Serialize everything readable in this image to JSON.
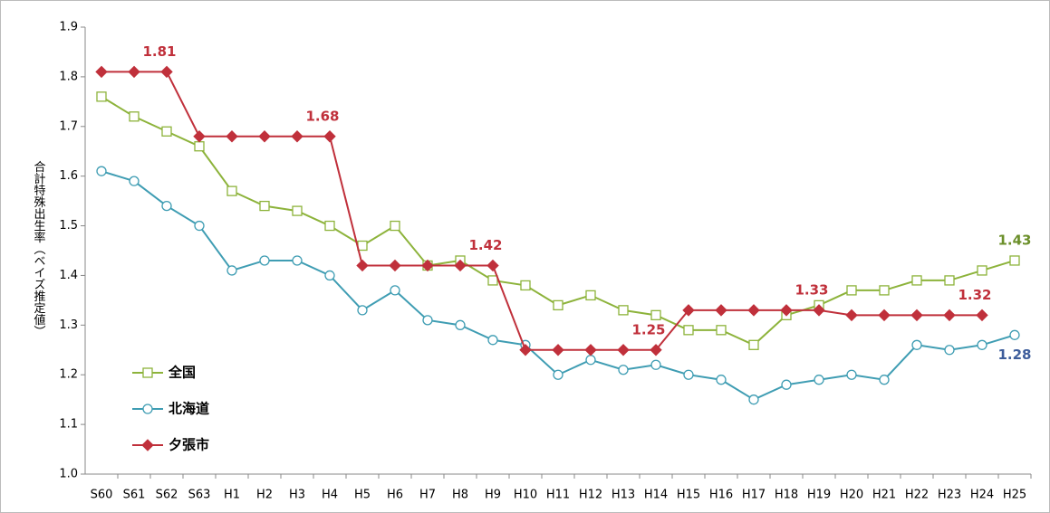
{
  "chart_data": {
    "type": "line",
    "y_label": "合計特殊出生率（ベイズ推定値）",
    "categories": [
      "S60",
      "S61",
      "S62",
      "S63",
      "H1",
      "H2",
      "H3",
      "H4",
      "H5",
      "H6",
      "H7",
      "H8",
      "H9",
      "H10",
      "H11",
      "H12",
      "H13",
      "H14",
      "H15",
      "H16",
      "H17",
      "H18",
      "H19",
      "H20",
      "H21",
      "H22",
      "H23",
      "H24",
      "H25"
    ],
    "ylim": [
      1.0,
      1.9
    ],
    "yticks": [
      {
        "value": 1,
        "label": "1.0"
      },
      1.1,
      1.2,
      1.3,
      1.4,
      1.5,
      1.6,
      1.7,
      1.8,
      1.9
    ],
    "grid": false,
    "legend": "lower left",
    "series": [
      {
        "name": "全国",
        "color": "#8db33b",
        "marker": "square",
        "label_color": "#6b8f2a",
        "values": [
          1.76,
          1.72,
          1.69,
          1.66,
          1.57,
          1.54,
          1.53,
          1.5,
          1.46,
          1.5,
          1.42,
          1.43,
          1.39,
          1.38,
          1.34,
          1.36,
          1.33,
          1.32,
          1.29,
          1.29,
          1.26,
          1.32,
          1.34,
          1.37,
          1.37,
          1.39,
          1.39,
          1.41,
          1.43
        ],
        "value_labels": [
          null,
          null,
          null,
          null,
          null,
          null,
          null,
          null,
          null,
          null,
          null,
          null,
          null,
          null,
          null,
          null,
          null,
          null,
          null,
          null,
          null,
          null,
          null,
          null,
          null,
          null,
          null,
          null,
          "1.43"
        ]
      },
      {
        "name": "北海道",
        "color": "#3f9db3",
        "marker": "circle",
        "label_color": "#3d5d9b",
        "values": [
          1.61,
          1.59,
          1.54,
          1.5,
          1.41,
          1.43,
          1.43,
          1.4,
          1.33,
          1.37,
          1.31,
          1.3,
          1.27,
          1.26,
          1.2,
          1.23,
          1.21,
          1.22,
          1.2,
          1.19,
          1.15,
          1.18,
          1.19,
          1.2,
          1.19,
          1.26,
          1.25,
          1.26,
          1.28
        ],
        "value_labels": [
          null,
          null,
          null,
          null,
          null,
          null,
          null,
          null,
          null,
          null,
          null,
          null,
          null,
          null,
          null,
          null,
          null,
          null,
          null,
          null,
          null,
          null,
          null,
          null,
          null,
          null,
          null,
          null,
          "1.28"
        ]
      },
      {
        "name": "夕張市",
        "color": "#c0303b",
        "marker": "diamond",
        "label_color": "#c0303b",
        "values": [
          1.81,
          1.81,
          1.81,
          1.68,
          1.68,
          1.68,
          1.68,
          1.68,
          1.42,
          1.42,
          1.42,
          1.42,
          1.42,
          1.25,
          1.25,
          1.25,
          1.25,
          1.25,
          1.33,
          1.33,
          1.33,
          1.33,
          1.33,
          1.32,
          1.32,
          1.32,
          1.32,
          1.32,
          null
        ],
        "value_labels": [
          null,
          null,
          "1.81",
          null,
          null,
          null,
          null,
          "1.68",
          null,
          null,
          null,
          null,
          "1.42",
          null,
          null,
          null,
          null,
          "1.25",
          null,
          null,
          null,
          null,
          "1.33",
          null,
          null,
          null,
          null,
          "1.32",
          null
        ]
      }
    ]
  }
}
